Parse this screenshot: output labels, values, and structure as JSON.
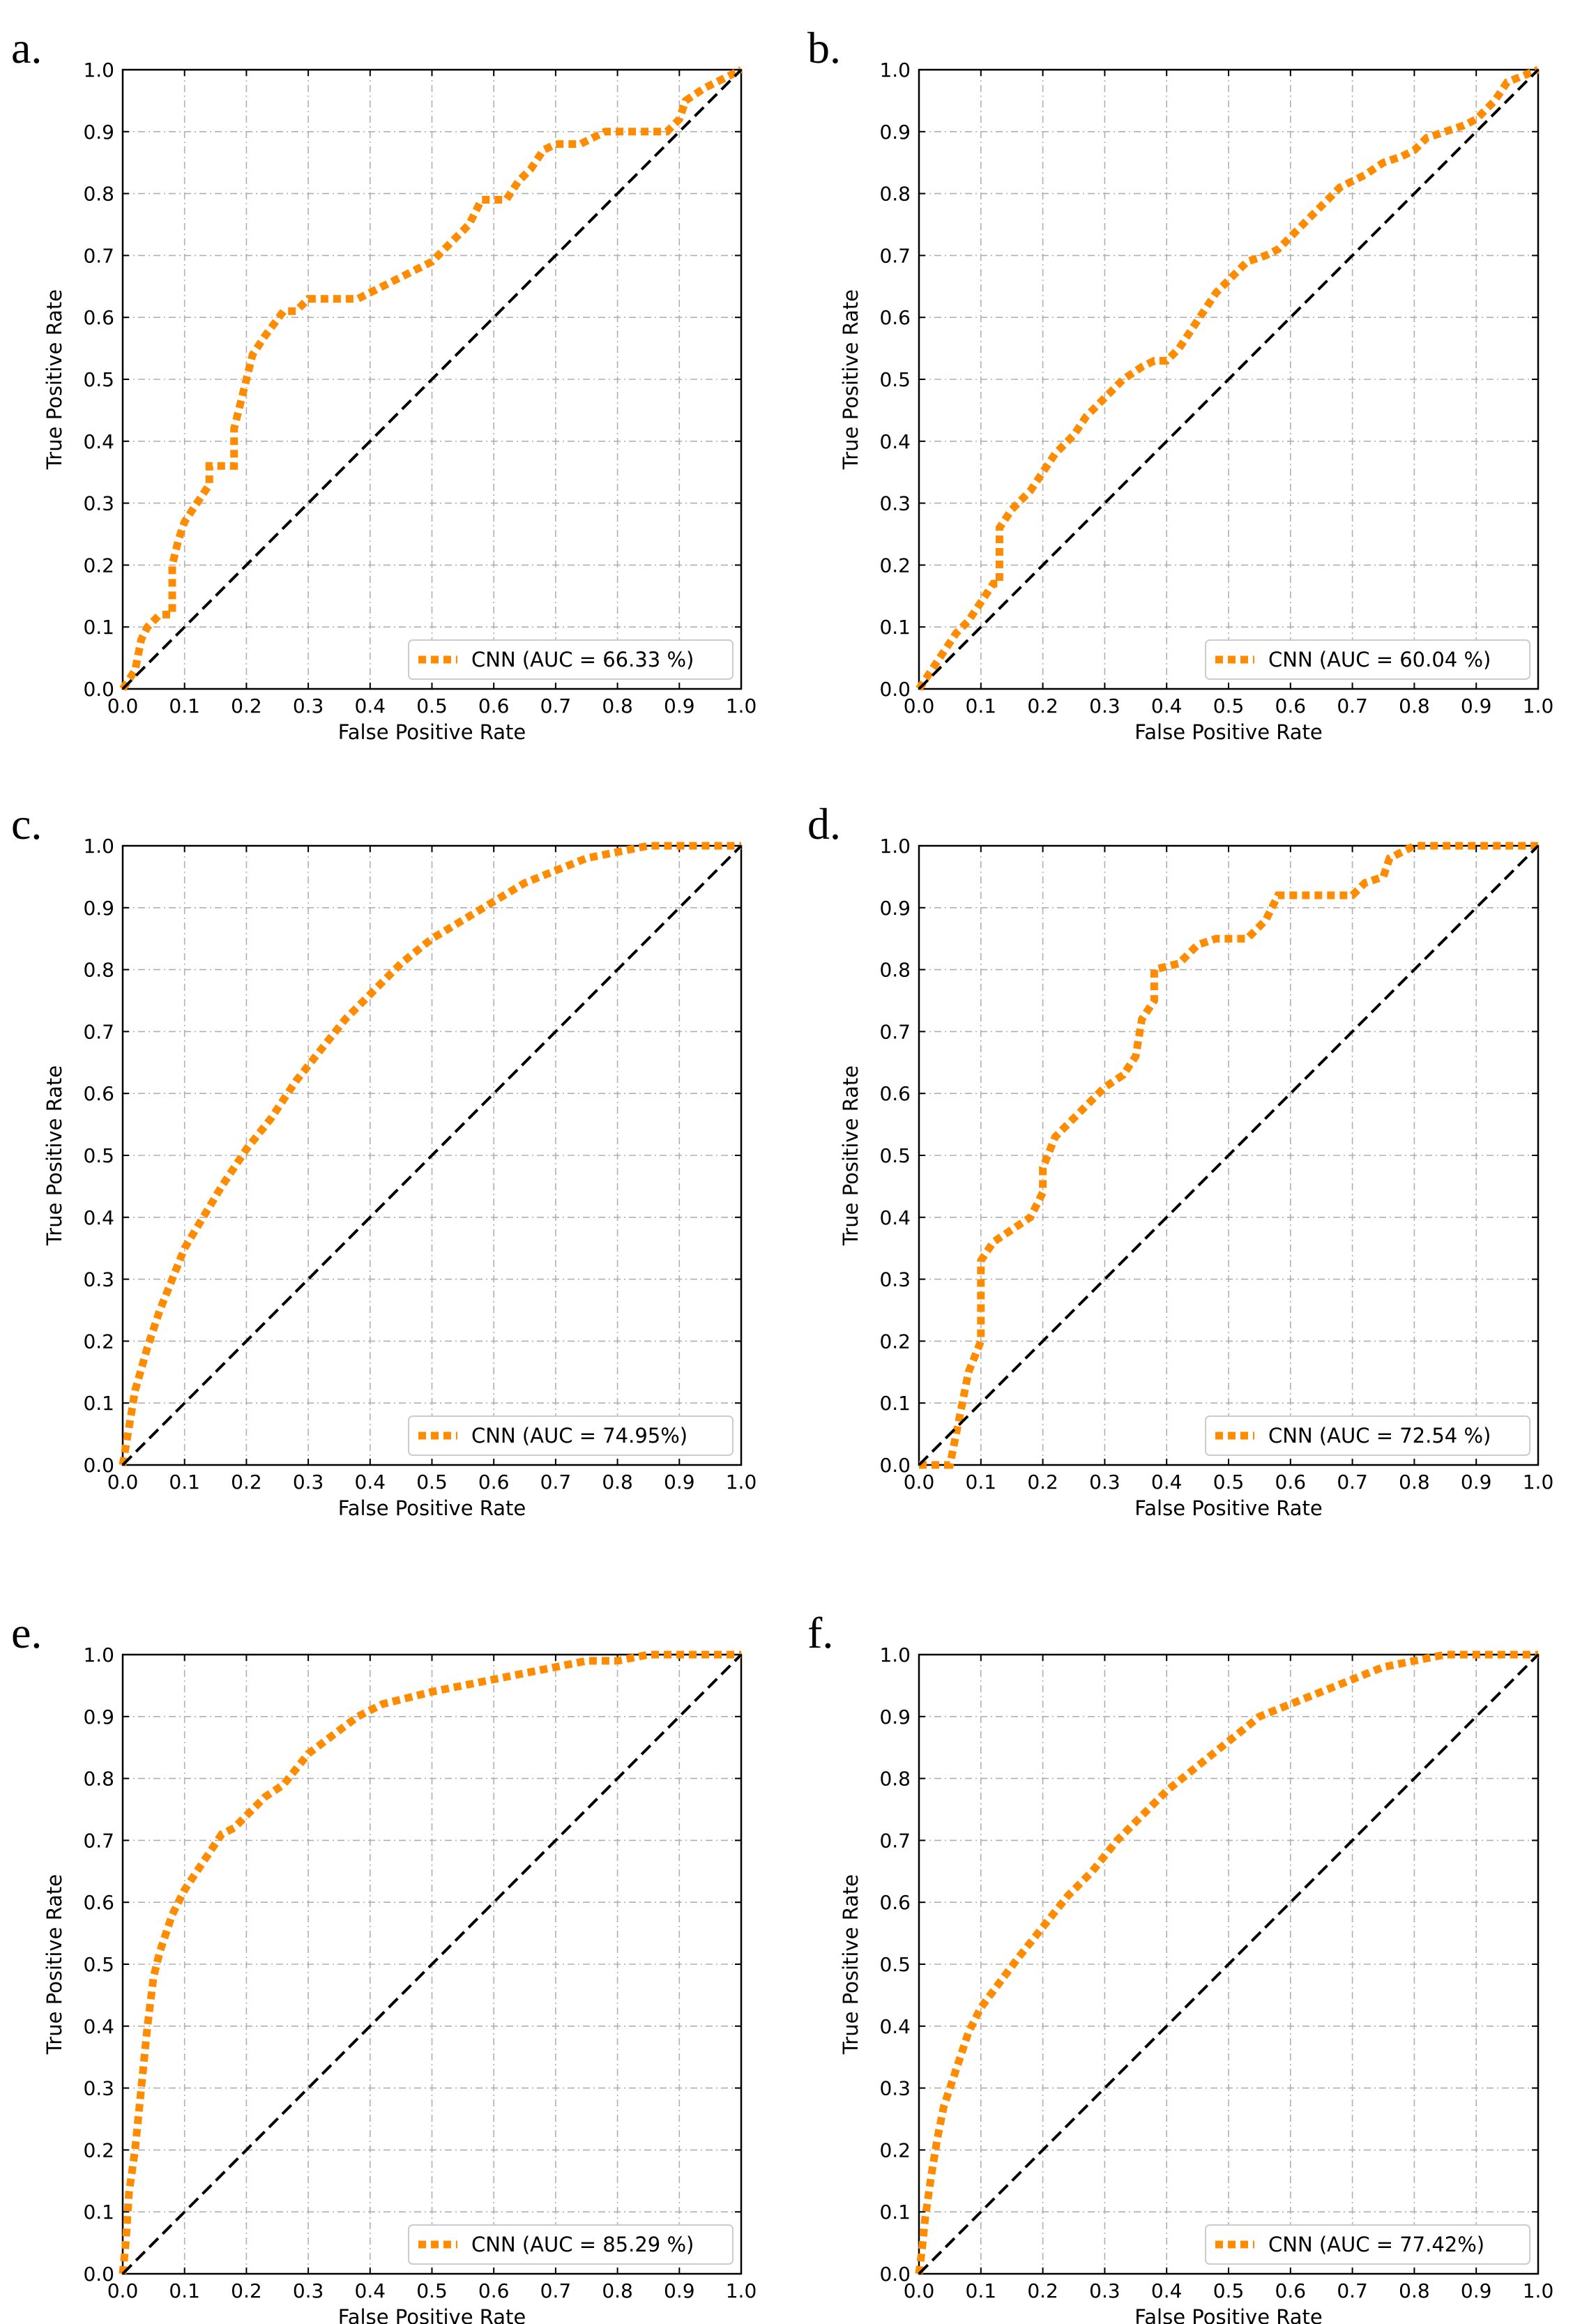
{
  "figure": {
    "colors": {
      "roc": "#ff8c00",
      "diagonal": "#000000",
      "grid": "#b0b0b0"
    }
  },
  "chart_data": [
    {
      "panel": "a.",
      "type": "line",
      "xlabel": "False Positive Rate",
      "ylabel": "True Positive Rate",
      "xlim": [
        0,
        1
      ],
      "ylim": [
        0,
        1
      ],
      "xticks": [
        "0.0",
        "0.1",
        "0.2",
        "0.3",
        "0.4",
        "0.5",
        "0.6",
        "0.7",
        "0.8",
        "0.9",
        "1.0"
      ],
      "yticks": [
        "0.0",
        "0.1",
        "0.2",
        "0.3",
        "0.4",
        "0.5",
        "0.6",
        "0.7",
        "0.8",
        "0.9",
        "1.0"
      ],
      "grid": true,
      "legend_position": "lower-right",
      "series": [
        {
          "name": "CNN (AUC = 66.33 %)",
          "style": "dotted",
          "x": [
            0,
            0.02,
            0.03,
            0.04,
            0.06,
            0.08,
            0.08,
            0.09,
            0.1,
            0.12,
            0.14,
            0.14,
            0.18,
            0.18,
            0.2,
            0.21,
            0.23,
            0.26,
            0.28,
            0.3,
            0.34,
            0.38,
            0.42,
            0.46,
            0.5,
            0.52,
            0.56,
            0.58,
            0.62,
            0.64,
            0.66,
            0.68,
            0.7,
            0.74,
            0.78,
            0.82,
            0.86,
            0.88,
            0.9,
            0.91,
            0.94,
            0.96,
            0.98,
            1
          ],
          "y": [
            0,
            0.03,
            0.08,
            0.1,
            0.12,
            0.12,
            0.2,
            0.24,
            0.27,
            0.3,
            0.33,
            0.36,
            0.36,
            0.42,
            0.5,
            0.54,
            0.57,
            0.61,
            0.61,
            0.63,
            0.63,
            0.63,
            0.65,
            0.67,
            0.69,
            0.71,
            0.75,
            0.79,
            0.79,
            0.82,
            0.84,
            0.87,
            0.88,
            0.88,
            0.9,
            0.9,
            0.9,
            0.9,
            0.92,
            0.95,
            0.97,
            0.98,
            0.99,
            1
          ]
        },
        {
          "name": "",
          "style": "dashed",
          "x": [
            0,
            1
          ],
          "y": [
            0,
            1
          ]
        }
      ]
    },
    {
      "panel": "b.",
      "type": "line",
      "xlabel": "False Positive Rate",
      "ylabel": "True Positive Rate",
      "xlim": [
        0,
        1
      ],
      "ylim": [
        0,
        1
      ],
      "xticks": [
        "0.0",
        "0.1",
        "0.2",
        "0.3",
        "0.4",
        "0.5",
        "0.6",
        "0.7",
        "0.8",
        "0.9",
        "1.0"
      ],
      "yticks": [
        "0.0",
        "0.1",
        "0.2",
        "0.3",
        "0.4",
        "0.5",
        "0.6",
        "0.7",
        "0.8",
        "0.9",
        "1.0"
      ],
      "grid": true,
      "legend_position": "lower-right",
      "series": [
        {
          "name": "CNN (AUC = 60.04 %)",
          "style": "dotted",
          "x": [
            0,
            0.02,
            0.04,
            0.06,
            0.08,
            0.1,
            0.12,
            0.13,
            0.13,
            0.15,
            0.18,
            0.2,
            0.22,
            0.25,
            0.27,
            0.3,
            0.33,
            0.36,
            0.38,
            0.4,
            0.42,
            0.44,
            0.46,
            0.48,
            0.5,
            0.53,
            0.56,
            0.58,
            0.6,
            0.63,
            0.66,
            0.68,
            0.7,
            0.72,
            0.75,
            0.78,
            0.8,
            0.82,
            0.85,
            0.88,
            0.9,
            0.93,
            0.95,
            1
          ],
          "y": [
            0,
            0.03,
            0.06,
            0.09,
            0.11,
            0.14,
            0.17,
            0.17,
            0.26,
            0.29,
            0.32,
            0.35,
            0.38,
            0.41,
            0.44,
            0.47,
            0.5,
            0.52,
            0.53,
            0.53,
            0.55,
            0.58,
            0.61,
            0.64,
            0.66,
            0.69,
            0.7,
            0.71,
            0.73,
            0.76,
            0.79,
            0.81,
            0.82,
            0.83,
            0.85,
            0.86,
            0.87,
            0.89,
            0.9,
            0.91,
            0.92,
            0.95,
            0.98,
            1
          ]
        },
        {
          "name": "",
          "style": "dashed",
          "x": [
            0,
            1
          ],
          "y": [
            0,
            1
          ]
        }
      ]
    },
    {
      "panel": "c.",
      "type": "line",
      "xlabel": "False Positive Rate",
      "ylabel": "True Positive Rate",
      "xlim": [
        0,
        1
      ],
      "ylim": [
        0,
        1
      ],
      "xticks": [
        "0.0",
        "0.1",
        "0.2",
        "0.3",
        "0.4",
        "0.5",
        "0.6",
        "0.7",
        "0.8",
        "0.9",
        "1.0"
      ],
      "yticks": [
        "0.0",
        "0.1",
        "0.2",
        "0.3",
        "0.4",
        "0.5",
        "0.6",
        "0.7",
        "0.8",
        "0.9",
        "1.0"
      ],
      "grid": true,
      "legend_position": "lower-right",
      "series": [
        {
          "name": "CNN (AUC = 74.95%)",
          "style": "dotted",
          "x": [
            0,
            0.01,
            0.02,
            0.04,
            0.06,
            0.08,
            0.1,
            0.13,
            0.16,
            0.2,
            0.24,
            0.28,
            0.32,
            0.36,
            0.4,
            0.45,
            0.5,
            0.55,
            0.6,
            0.65,
            0.7,
            0.75,
            0.8,
            0.85,
            0.9,
            0.95,
            1
          ],
          "y": [
            0,
            0.06,
            0.12,
            0.19,
            0.25,
            0.3,
            0.35,
            0.4,
            0.45,
            0.51,
            0.56,
            0.62,
            0.67,
            0.72,
            0.76,
            0.81,
            0.85,
            0.88,
            0.91,
            0.94,
            0.96,
            0.98,
            0.99,
            1,
            1,
            1,
            1
          ]
        },
        {
          "name": "",
          "style": "dashed",
          "x": [
            0,
            1
          ],
          "y": [
            0,
            1
          ]
        }
      ]
    },
    {
      "panel": "d.",
      "type": "line",
      "xlabel": "False Positive Rate",
      "ylabel": "True Positive Rate",
      "xlim": [
        0,
        1
      ],
      "ylim": [
        0,
        1
      ],
      "xticks": [
        "0.0",
        "0.1",
        "0.2",
        "0.3",
        "0.4",
        "0.5",
        "0.6",
        "0.7",
        "0.8",
        "0.9",
        "1.0"
      ],
      "yticks": [
        "0.0",
        "0.1",
        "0.2",
        "0.3",
        "0.4",
        "0.5",
        "0.6",
        "0.7",
        "0.8",
        "0.9",
        "1.0"
      ],
      "grid": true,
      "legend_position": "lower-right",
      "series": [
        {
          "name": "CNN (AUC = 72.54 %)",
          "style": "dotted",
          "x": [
            0,
            0.05,
            0.06,
            0.07,
            0.08,
            0.1,
            0.1,
            0.12,
            0.15,
            0.18,
            0.2,
            0.2,
            0.22,
            0.25,
            0.28,
            0.3,
            0.33,
            0.35,
            0.36,
            0.38,
            0.38,
            0.42,
            0.45,
            0.48,
            0.5,
            0.53,
            0.56,
            0.58,
            0.6,
            0.65,
            0.7,
            0.72,
            0.75,
            0.76,
            0.8,
            0.85,
            0.9,
            0.95,
            1
          ],
          "y": [
            0,
            0,
            0.05,
            0.1,
            0.15,
            0.2,
            0.33,
            0.36,
            0.38,
            0.4,
            0.44,
            0.48,
            0.53,
            0.56,
            0.59,
            0.61,
            0.63,
            0.66,
            0.72,
            0.75,
            0.8,
            0.81,
            0.84,
            0.85,
            0.85,
            0.85,
            0.88,
            0.92,
            0.92,
            0.92,
            0.92,
            0.94,
            0.95,
            0.98,
            1,
            1,
            1,
            1,
            1
          ]
        },
        {
          "name": "",
          "style": "dashed",
          "x": [
            0,
            1
          ],
          "y": [
            0,
            1
          ]
        }
      ]
    },
    {
      "panel": "e.",
      "type": "line",
      "xlabel": "False Positive Rate",
      "ylabel": "True Positive Rate",
      "xlim": [
        0,
        1
      ],
      "ylim": [
        0,
        1
      ],
      "xticks": [
        "0.0",
        "0.1",
        "0.2",
        "0.3",
        "0.4",
        "0.5",
        "0.6",
        "0.7",
        "0.8",
        "0.9",
        "1.0"
      ],
      "yticks": [
        "0.0",
        "0.1",
        "0.2",
        "0.3",
        "0.4",
        "0.5",
        "0.6",
        "0.7",
        "0.8",
        "0.9",
        "1.0"
      ],
      "grid": true,
      "legend_position": "lower-right",
      "series": [
        {
          "name": "CNN (AUC = 85.29 %)",
          "style": "dotted",
          "x": [
            0,
            0.005,
            0.01,
            0.02,
            0.03,
            0.04,
            0.05,
            0.06,
            0.07,
            0.08,
            0.1,
            0.12,
            0.14,
            0.16,
            0.18,
            0.2,
            0.23,
            0.26,
            0.3,
            0.34,
            0.38,
            0.42,
            0.46,
            0.5,
            0.55,
            0.6,
            0.65,
            0.7,
            0.75,
            0.8,
            0.85,
            0.9,
            0.95,
            1
          ],
          "y": [
            0,
            0.05,
            0.13,
            0.2,
            0.3,
            0.4,
            0.48,
            0.52,
            0.55,
            0.58,
            0.62,
            0.65,
            0.68,
            0.71,
            0.72,
            0.74,
            0.77,
            0.79,
            0.84,
            0.87,
            0.9,
            0.92,
            0.93,
            0.94,
            0.95,
            0.96,
            0.97,
            0.98,
            0.99,
            0.99,
            1,
            1,
            1,
            1
          ]
        },
        {
          "name": "",
          "style": "dashed",
          "x": [
            0,
            1
          ],
          "y": [
            0,
            1
          ]
        }
      ]
    },
    {
      "panel": "f.",
      "type": "line",
      "xlabel": "False Positive Rate",
      "ylabel": "True Positive Rate",
      "xlim": [
        0,
        1
      ],
      "ylim": [
        0,
        1
      ],
      "xticks": [
        "0.0",
        "0.1",
        "0.2",
        "0.3",
        "0.4",
        "0.5",
        "0.6",
        "0.7",
        "0.8",
        "0.9",
        "1.0"
      ],
      "yticks": [
        "0.0",
        "0.1",
        "0.2",
        "0.3",
        "0.4",
        "0.5",
        "0.6",
        "0.7",
        "0.8",
        "0.9",
        "1.0"
      ],
      "grid": true,
      "legend_position": "lower-right",
      "series": [
        {
          "name": "CNN (AUC = 77.42%)",
          "style": "dotted",
          "x": [
            0,
            0.005,
            0.01,
            0.02,
            0.03,
            0.04,
            0.06,
            0.08,
            0.1,
            0.13,
            0.16,
            0.2,
            0.24,
            0.28,
            0.32,
            0.36,
            0.4,
            0.45,
            0.5,
            0.55,
            0.6,
            0.65,
            0.7,
            0.75,
            0.8,
            0.85,
            0.9,
            0.95,
            1
          ],
          "y": [
            0,
            0.04,
            0.09,
            0.16,
            0.22,
            0.27,
            0.33,
            0.39,
            0.43,
            0.47,
            0.51,
            0.56,
            0.61,
            0.65,
            0.7,
            0.74,
            0.78,
            0.82,
            0.86,
            0.9,
            0.92,
            0.94,
            0.96,
            0.98,
            0.99,
            1,
            1,
            1,
            1
          ]
        },
        {
          "name": "",
          "style": "dashed",
          "x": [
            0,
            1
          ],
          "y": [
            0,
            1
          ]
        }
      ]
    }
  ]
}
